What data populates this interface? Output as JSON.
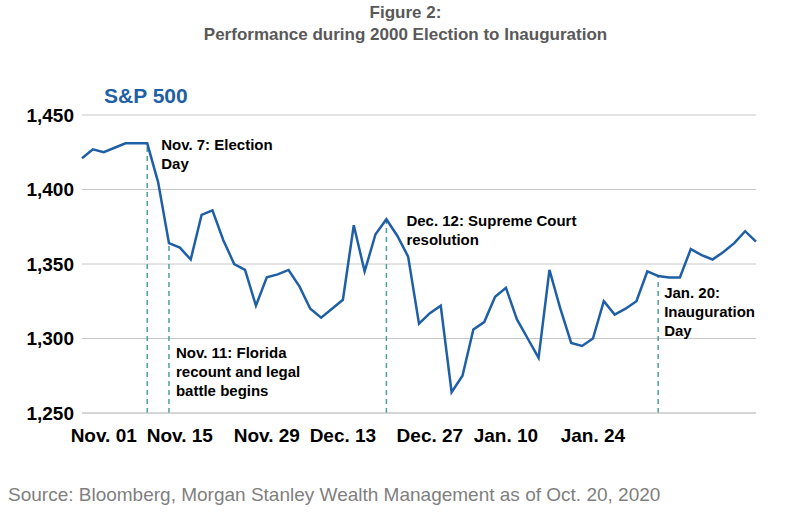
{
  "chart_data": {
    "type": "line",
    "title": "Figure 2:",
    "subtitle": "Performance during 2000 Election to Inauguration",
    "source": "Source: Bloomberg, Morgan Stanley Wealth Management as of Oct. 20, 2020",
    "categories": [
      null,
      null,
      "Nov. 01",
      null,
      null,
      null,
      null,
      null,
      null,
      "Nov. 15",
      null,
      null,
      null,
      null,
      null,
      null,
      null,
      "Nov. 29",
      null,
      null,
      null,
      null,
      null,
      null,
      "Dec. 13",
      null,
      null,
      null,
      null,
      null,
      null,
      null,
      "Dec. 27",
      null,
      null,
      null,
      null,
      null,
      null,
      "Jan. 10",
      null,
      null,
      null,
      null,
      null,
      null,
      null,
      "Jan. 24",
      null,
      null,
      null,
      null,
      null,
      null,
      null,
      null,
      null,
      null,
      null,
      null,
      null,
      null,
      null
    ],
    "series": [
      {
        "name": "S&P 500",
        "color": "#1f5fa6",
        "values": [
          1421,
          1427,
          1425,
          1428,
          1431,
          1431,
          1431,
          1405,
          1364,
          1361,
          1353,
          1383,
          1386,
          1366,
          1350,
          1346,
          1322,
          1341,
          1343,
          1346,
          1335,
          1320,
          1314,
          1320,
          1326,
          1376,
          1345,
          1370,
          1380,
          1369,
          1355,
          1310,
          1317,
          1322,
          1264,
          1275,
          1306,
          1311,
          1328,
          1334,
          1313,
          1300,
          1287,
          1346,
          1320,
          1297,
          1295,
          1300,
          1325,
          1316,
          1320,
          1325,
          1345,
          1342,
          1341,
          1341,
          1360,
          1356,
          1353,
          1358,
          1364,
          1372,
          1365
        ]
      }
    ],
    "ylim": [
      1250,
      1450
    ],
    "yticks": [
      {
        "value": 1250,
        "label": "1,250"
      },
      {
        "value": 1300,
        "label": "1,300"
      },
      {
        "value": 1350,
        "label": "1,350"
      },
      {
        "value": 1400,
        "label": "1,400"
      },
      {
        "value": 1450,
        "label": "1,450"
      }
    ],
    "grid": true,
    "annotations": [
      {
        "text": [
          "Nov. 7: Election",
          "Day"
        ],
        "x": 6,
        "color": "#4aa396",
        "line_style": "dashed"
      },
      {
        "text": [
          "Nov. 11: Florida",
          "recount and legal",
          "battle begins"
        ],
        "x": 8,
        "color": "#4aa396",
        "line_style": "dashed"
      },
      {
        "text": [
          "Dec. 12: Supreme Court",
          "resolution"
        ],
        "x": 28,
        "color": "#4aa396",
        "line_style": "dashed"
      },
      {
        "text": [
          "Jan. 20:",
          "Inauguration",
          "Day"
        ],
        "x": 53,
        "color": "#4aa396",
        "line_style": "dashed"
      }
    ]
  }
}
